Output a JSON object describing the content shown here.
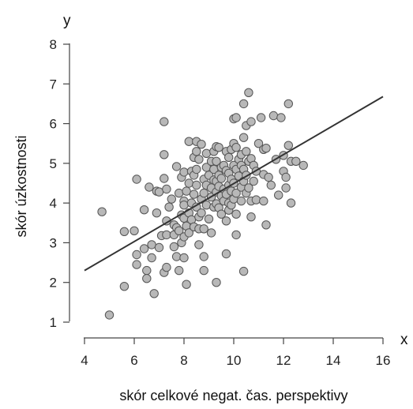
{
  "chart_data": {
    "type": "scatter",
    "xlabel": "skór celkové negat. čas. perspektivy",
    "ylabel": "skór úzkostnosti",
    "x_axis_letter": "x",
    "y_axis_letter": "y",
    "xlim": [
      4,
      16
    ],
    "ylim": [
      1,
      8
    ],
    "x_ticks": [
      "4",
      "6",
      "8",
      "10",
      "12",
      "14",
      "16"
    ],
    "y_ticks": [
      "1",
      "2",
      "3",
      "4",
      "5",
      "6",
      "7",
      "8"
    ],
    "grid": false,
    "regression_line": {
      "x": [
        4,
        16
      ],
      "y": [
        2.3,
        6.68
      ]
    },
    "colors": {
      "point_fill": "#b8b8b8",
      "point_stroke": "#555555",
      "line": "#333333",
      "axis": "#444444"
    },
    "points": [
      [
        4.7,
        3.78
      ],
      [
        5.0,
        1.18
      ],
      [
        5.6,
        3.28
      ],
      [
        5.6,
        1.9
      ],
      [
        6.0,
        3.3
      ],
      [
        6.1,
        4.6
      ],
      [
        6.1,
        2.7
      ],
      [
        6.1,
        2.45
      ],
      [
        6.4,
        3.83
      ],
      [
        6.4,
        2.85
      ],
      [
        6.5,
        2.3
      ],
      [
        6.5,
        2.1
      ],
      [
        6.6,
        4.4
      ],
      [
        6.7,
        2.95
      ],
      [
        6.7,
        2.62
      ],
      [
        6.8,
        1.72
      ],
      [
        6.9,
        4.3
      ],
      [
        6.9,
        3.75
      ],
      [
        7.0,
        4.28
      ],
      [
        7.0,
        2.88
      ],
      [
        7.1,
        3.18
      ],
      [
        7.2,
        6.05
      ],
      [
        7.2,
        5.22
      ],
      [
        7.2,
        4.62
      ],
      [
        7.2,
        2.25
      ],
      [
        7.3,
        4.35
      ],
      [
        7.3,
        3.55
      ],
      [
        7.3,
        3.2
      ],
      [
        7.3,
        2.38
      ],
      [
        7.4,
        3.9
      ],
      [
        7.5,
        4.1
      ],
      [
        7.6,
        3.45
      ],
      [
        7.6,
        3.2
      ],
      [
        7.6,
        2.9
      ],
      [
        7.7,
        4.92
      ],
      [
        7.7,
        3.38
      ],
      [
        7.7,
        2.65
      ],
      [
        7.8,
        4.25
      ],
      [
        7.8,
        3.3
      ],
      [
        7.8,
        2.3
      ],
      [
        7.9,
        4.65
      ],
      [
        7.9,
        3.7
      ],
      [
        7.9,
        3.0
      ],
      [
        8.0,
        4.78
      ],
      [
        8.0,
        4.05
      ],
      [
        8.0,
        3.95
      ],
      [
        8.0,
        3.62
      ],
      [
        8.0,
        3.15
      ],
      [
        8.0,
        2.62
      ],
      [
        8.1,
        4.3
      ],
      [
        8.1,
        3.42
      ],
      [
        8.1,
        1.95
      ],
      [
        8.2,
        5.55
      ],
      [
        8.2,
        4.5
      ],
      [
        8.2,
        3.75
      ],
      [
        8.2,
        3.25
      ],
      [
        8.3,
        4.8
      ],
      [
        8.3,
        4.0
      ],
      [
        8.3,
        3.58
      ],
      [
        8.4,
        5.15
      ],
      [
        8.4,
        4.7
      ],
      [
        8.4,
        4.22
      ],
      [
        8.4,
        3.4
      ],
      [
        8.5,
        5.55
      ],
      [
        8.5,
        5.3
      ],
      [
        8.5,
        4.85
      ],
      [
        8.5,
        4.45
      ],
      [
        8.5,
        3.9
      ],
      [
        8.6,
        5.1
      ],
      [
        8.6,
        3.65
      ],
      [
        8.6,
        3.35
      ],
      [
        8.6,
        2.95
      ],
      [
        8.7,
        5.48
      ],
      [
        8.7,
        4.1
      ],
      [
        8.7,
        3.75
      ],
      [
        8.8,
        4.6
      ],
      [
        8.8,
        4.25
      ],
      [
        8.8,
        3.35
      ],
      [
        8.8,
        2.65
      ],
      [
        8.8,
        2.3
      ],
      [
        8.9,
        5.25
      ],
      [
        8.9,
        4.9
      ],
      [
        8.9,
        4.45
      ],
      [
        8.9,
        3.95
      ],
      [
        9.0,
        4.7
      ],
      [
        9.0,
        3.6
      ],
      [
        9.1,
        5.05
      ],
      [
        9.1,
        4.38
      ],
      [
        9.1,
        4.15
      ],
      [
        9.1,
        3.25
      ],
      [
        9.2,
        5.3
      ],
      [
        9.2,
        4.85
      ],
      [
        9.2,
        4.58
      ],
      [
        9.2,
        3.9
      ],
      [
        9.3,
        5.42
      ],
      [
        9.3,
        5.05
      ],
      [
        9.3,
        4.55
      ],
      [
        9.3,
        4.28
      ],
      [
        9.3,
        3.98
      ],
      [
        9.3,
        2.0
      ],
      [
        9.4,
        5.4
      ],
      [
        9.4,
        4.7
      ],
      [
        9.4,
        4.42
      ],
      [
        9.4,
        3.88
      ],
      [
        9.5,
        4.9
      ],
      [
        9.5,
        4.62
      ],
      [
        9.5,
        4.18
      ],
      [
        9.5,
        3.72
      ],
      [
        9.6,
        4.95
      ],
      [
        9.6,
        4.35
      ],
      [
        9.6,
        4.05
      ],
      [
        9.7,
        5.3
      ],
      [
        9.7,
        4.82
      ],
      [
        9.7,
        4.22
      ],
      [
        9.7,
        3.55
      ],
      [
        9.7,
        2.72
      ],
      [
        9.8,
        5.15
      ],
      [
        9.8,
        4.75
      ],
      [
        9.8,
        4.45
      ],
      [
        9.8,
        4.0
      ],
      [
        9.8,
        3.82
      ],
      [
        9.9,
        5.35
      ],
      [
        9.9,
        4.6
      ],
      [
        9.9,
        4.3
      ],
      [
        9.9,
        3.95
      ],
      [
        10.0,
        6.12
      ],
      [
        10.0,
        5.5
      ],
      [
        10.0,
        4.95
      ],
      [
        10.0,
        4.5
      ],
      [
        10.0,
        4.1
      ],
      [
        10.1,
        6.15
      ],
      [
        10.1,
        5.4
      ],
      [
        10.1,
        4.85
      ],
      [
        10.1,
        4.25
      ],
      [
        10.1,
        3.72
      ],
      [
        10.1,
        3.2
      ],
      [
        10.2,
        5.1
      ],
      [
        10.2,
        4.68
      ],
      [
        10.3,
        5.22
      ],
      [
        10.3,
        4.95
      ],
      [
        10.3,
        4.4
      ],
      [
        10.3,
        4.05
      ],
      [
        10.4,
        6.5
      ],
      [
        10.4,
        5.65
      ],
      [
        10.4,
        4.85
      ],
      [
        10.4,
        4.55
      ],
      [
        10.4,
        2.28
      ],
      [
        10.5,
        5.95
      ],
      [
        10.5,
        5.3
      ],
      [
        10.5,
        4.7
      ],
      [
        10.5,
        4.25
      ],
      [
        10.6,
        6.78
      ],
      [
        10.6,
        5.05
      ],
      [
        10.6,
        4.38
      ],
      [
        10.7,
        6.05
      ],
      [
        10.7,
        5.12
      ],
      [
        10.7,
        4.05
      ],
      [
        10.7,
        3.65
      ],
      [
        10.8,
        4.95
      ],
      [
        10.8,
        4.55
      ],
      [
        10.9,
        4.8
      ],
      [
        10.9,
        4.08
      ],
      [
        11.0,
        5.5
      ],
      [
        11.1,
        6.15
      ],
      [
        11.2,
        5.35
      ],
      [
        11.2,
        4.72
      ],
      [
        11.2,
        4.05
      ],
      [
        11.3,
        5.38
      ],
      [
        11.3,
        3.45
      ],
      [
        11.4,
        4.65
      ],
      [
        11.5,
        4.45
      ],
      [
        11.6,
        6.2
      ],
      [
        11.7,
        5.1
      ],
      [
        11.8,
        4.2
      ],
      [
        11.9,
        6.15
      ],
      [
        12.0,
        5.2
      ],
      [
        12.0,
        4.8
      ],
      [
        12.1,
        4.65
      ],
      [
        12.1,
        4.38
      ],
      [
        12.2,
        6.5
      ],
      [
        12.2,
        5.45
      ],
      [
        12.3,
        4.0
      ],
      [
        12.3,
        5.05
      ],
      [
        12.5,
        5.05
      ],
      [
        12.8,
        4.95
      ]
    ]
  }
}
